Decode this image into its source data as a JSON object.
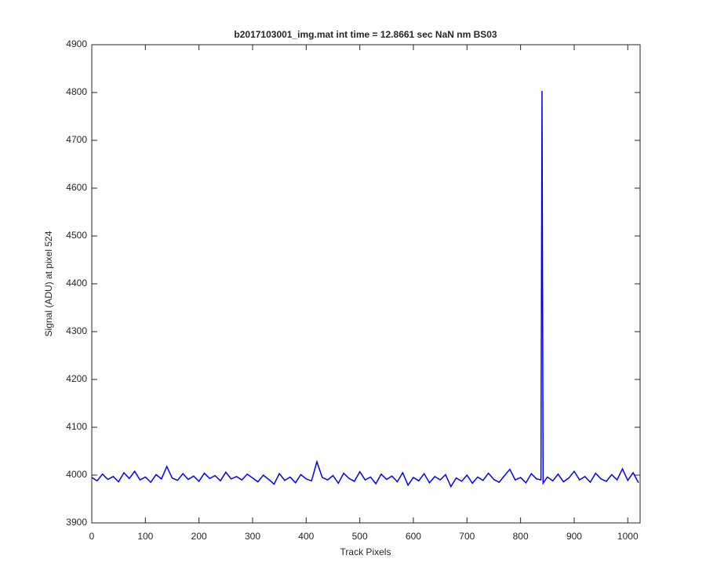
{
  "chart_data": {
    "type": "line",
    "title": "b2017103001_img.mat int time = 12.8661 sec  NaN nm BS03",
    "xlabel": "Track Pixels",
    "ylabel": "Signal (ADU) at pixel 524",
    "xlim": [
      0,
      1023
    ],
    "ylim": [
      3900,
      4900
    ],
    "xticks": [
      0,
      100,
      200,
      300,
      400,
      500,
      600,
      700,
      800,
      900,
      1000
    ],
    "yticks": [
      3900,
      4000,
      4100,
      4200,
      4300,
      4400,
      4500,
      4600,
      4700,
      4800,
      4900
    ],
    "grid": false,
    "series": [
      {
        "color": "#0000ff",
        "x": [
          0,
          10,
          20,
          30,
          40,
          50,
          60,
          70,
          80,
          90,
          100,
          110,
          120,
          130,
          140,
          150,
          160,
          170,
          180,
          190,
          200,
          210,
          220,
          230,
          240,
          250,
          260,
          270,
          280,
          290,
          300,
          310,
          320,
          330,
          340,
          350,
          360,
          370,
          380,
          390,
          400,
          410,
          420,
          430,
          440,
          450,
          460,
          470,
          480,
          490,
          500,
          510,
          520,
          530,
          540,
          550,
          560,
          570,
          580,
          590,
          600,
          610,
          620,
          630,
          640,
          650,
          660,
          670,
          680,
          690,
          700,
          710,
          720,
          730,
          740,
          750,
          760,
          770,
          780,
          790,
          800,
          810,
          820,
          830,
          838,
          840,
          842,
          850,
          860,
          870,
          880,
          890,
          900,
          910,
          920,
          930,
          940,
          950,
          960,
          970,
          980,
          990,
          1000,
          1010,
          1020
        ],
        "values": [
          3995,
          3988,
          4002,
          3991,
          3997,
          3986,
          4005,
          3993,
          4008,
          3990,
          3996,
          3985,
          4001,
          3992,
          4018,
          3994,
          3989,
          4003,
          3991,
          3998,
          3987,
          4004,
          3993,
          3999,
          3988,
          4006,
          3992,
          3997,
          3990,
          4002,
          3994,
          3986,
          4000,
          3991,
          3981,
          4003,
          3989,
          3996,
          3984,
          4001,
          3992,
          3988,
          4028,
          3995,
          3990,
          3999,
          3983,
          4004,
          3993,
          3987,
          4007,
          3990,
          3996,
          3982,
          4002,
          3991,
          3998,
          3986,
          4005,
          3979,
          3995,
          3988,
          4003,
          3984,
          3997,
          3990,
          4001,
          3976,
          3994,
          3987,
          4000,
          3983,
          3996,
          3989,
          4004,
          3991,
          3985,
          3999,
          4012,
          3990,
          3995,
          3984,
          4003,
          3992,
          3990,
          4803,
          3983,
          3996,
          3988,
          4002,
          3986,
          3994,
          4008,
          3990,
          3997,
          3985,
          4004,
          3992,
          3987,
          4001,
          3990,
          4013,
          3989,
          4005,
          3984
        ]
      }
    ]
  }
}
